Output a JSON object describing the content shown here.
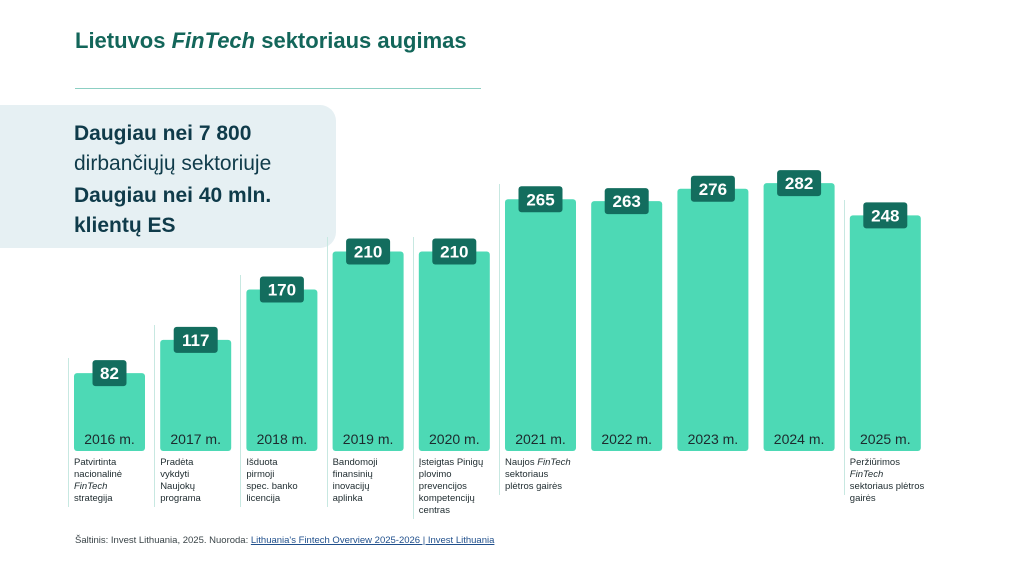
{
  "title": {
    "prefix": "Lietuvos ",
    "italic": "FinTech",
    "suffix": " sektoriaus augimas"
  },
  "callout": {
    "line1": "Daugiau nei 7 800",
    "line2": "dirbančiųjų sektoriuje",
    "line3": "Daugiau nei 40 mln.",
    "line4": "klientų ES"
  },
  "colors": {
    "bar": "#4dd9b5",
    "badge": "#136d5e",
    "title": "#13665a",
    "callout_bg": "#e6f0f3"
  },
  "chart_data": {
    "type": "bar",
    "categories": [
      "2016 m.",
      "2017 m.",
      "2018 m.",
      "2019 m.",
      "2020 m.",
      "2021 m.",
      "2022 m.",
      "2023 m.",
      "2024 m.",
      "2025 m."
    ],
    "values": [
      82,
      117,
      170,
      210,
      210,
      265,
      263,
      276,
      282,
      248
    ],
    "data_labels": [
      "82",
      "117",
      "170",
      "210",
      "210",
      "265",
      "263",
      "276",
      "282",
      "248"
    ],
    "annotations": [
      {
        "year": "2016 m.",
        "lines": [
          "Patvirtinta",
          "nacionalinė",
          "*FinTech*",
          "strategija"
        ]
      },
      {
        "year": "2017 m.",
        "lines": [
          "Pradėta",
          "vykdyti",
          "Naujokų",
          "programa"
        ]
      },
      {
        "year": "2018 m.",
        "lines": [
          "Išduota",
          "pirmoji",
          "spec. banko",
          "licencija"
        ]
      },
      {
        "year": "2019 m.",
        "lines": [
          "Bandomoji",
          "finansinių",
          "inovacijų",
          "aplinka"
        ]
      },
      {
        "year": "2020 m.",
        "lines": [
          "Įsteigtas Pinigų",
          "plovimo",
          "prevencijos",
          "kompetencijų",
          "centras"
        ]
      },
      {
        "year": "2021 m.",
        "lines": [
          "Naujos *FinTech*",
          "sektoriaus",
          "plėtros gairės"
        ]
      },
      {
        "year": "2025 m.",
        "lines": [
          "Peržiūrimos *FinTech*",
          "sektoriaus plėtros",
          "gairės"
        ]
      }
    ]
  },
  "source": {
    "text": "Šaltinis: Invest Lithuania, 2025. Nuoroda: ",
    "link": "Lithuania's Fintech Overview 2025-2026 | Invest Lithuania"
  }
}
